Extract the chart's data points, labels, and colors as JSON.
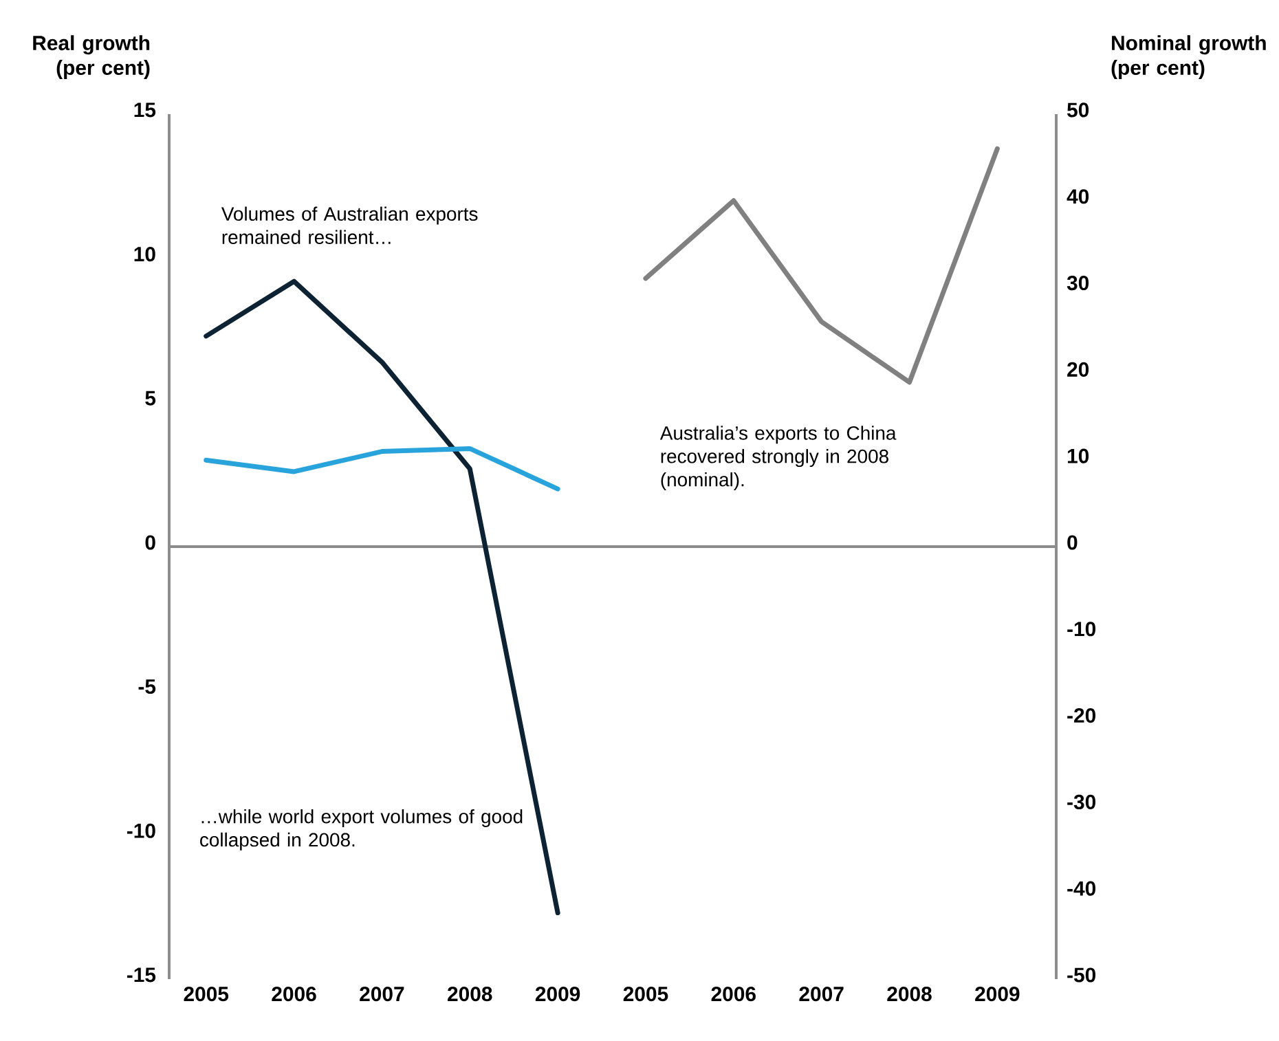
{
  "chart_data": {
    "type": "line",
    "ylabel": "Real growth (per cent)",
    "y2label": "Nominal growth (per cent)",
    "categories": [
      "2005",
      "2006",
      "2007",
      "2008",
      "2009",
      "2005",
      "2006",
      "2007",
      "2008",
      "2009"
    ],
    "series": [
      {
        "color": "#0d2233",
        "values": [
          7.3,
          9.2,
          6.4,
          2.7,
          -12.7,
          null,
          null,
          null,
          null,
          null
        ]
      },
      {
        "color": "#29a3dc",
        "values": [
          3.0,
          2.6,
          3.3,
          3.4,
          2.0,
          null,
          null,
          null,
          null,
          null
        ]
      },
      {
        "color": "#808080",
        "axis": "y2",
        "values": [
          null,
          null,
          null,
          null,
          null,
          31,
          40,
          26,
          19,
          46
        ]
      }
    ],
    "ylim": [
      -15,
      15
    ],
    "yticks": [
      -15,
      -10,
      -5,
      0,
      5,
      10,
      15
    ],
    "y2lim": [
      -50,
      50
    ],
    "y2ticks": [
      -50,
      -40,
      -30,
      -20,
      -10,
      0,
      10,
      20,
      30,
      40,
      50
    ],
    "ref_lines": [
      {
        "axis": "y",
        "value": 0,
        "color": "#8c8c8c"
      }
    ],
    "annotations": [
      "Volumes of Australian exports remained resilient…",
      "Australia’s exports to China recovered strongly in 2008 (nominal).",
      "…while world export volumes of good collapsed in 2008."
    ],
    "marker": "none",
    "line_style": "solid"
  }
}
